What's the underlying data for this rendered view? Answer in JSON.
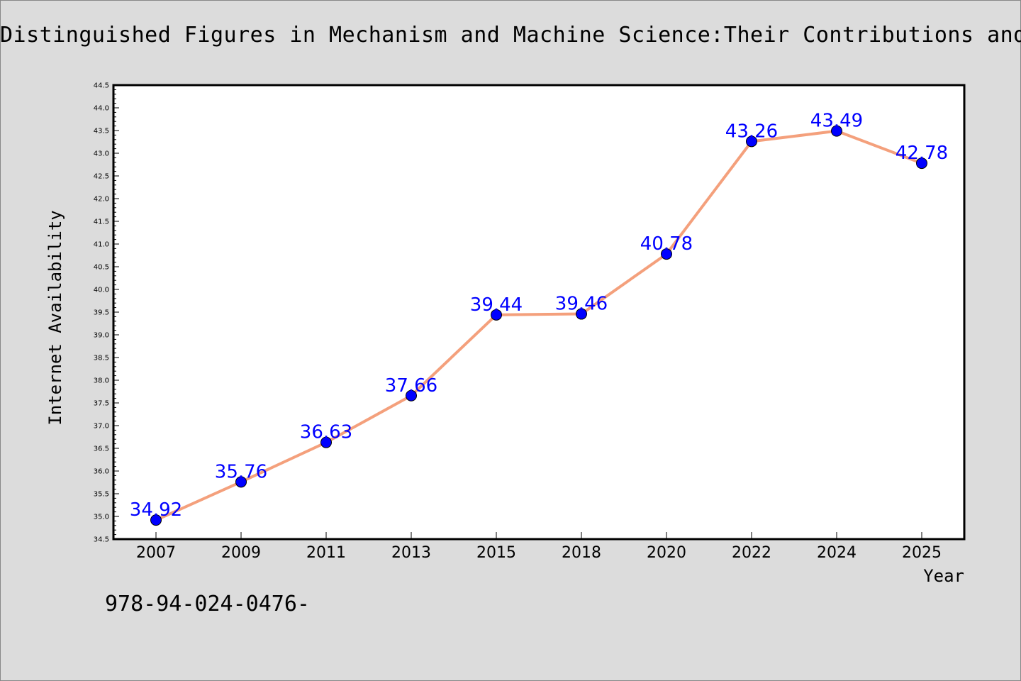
{
  "title": "Distinguished Figures in Mechanism and Machine Science:Their Contributions and Legacies",
  "footer_text": "978-94-024-0476-",
  "colors": {
    "background": "#dcdcdc",
    "plot_background": "#ffffff",
    "line": "#f4a07c",
    "marker": "#0000ff",
    "label": "#0000ff"
  },
  "chart_data": {
    "type": "line",
    "xlabel": "Year",
    "ylabel": "Internet Availability",
    "categories": [
      "2007",
      "2009",
      "2011",
      "2013",
      "2015",
      "2018",
      "2020",
      "2022",
      "2024",
      "2025"
    ],
    "series": [
      {
        "values": [
          34.92,
          35.76,
          36.63,
          37.66,
          39.44,
          39.46,
          40.78,
          43.26,
          43.49,
          42.78
        ]
      }
    ],
    "data_labels": [
      "34.92",
      "35.76",
      "36.63",
      "37.66",
      "39.44",
      "39.46",
      "40.78",
      "43.26",
      "43.49",
      "42.78"
    ],
    "ylim": [
      34.5,
      44.5
    ],
    "yticks": [
      "34.5",
      "35.0",
      "35.5",
      "36.0",
      "36.5",
      "37.0",
      "37.5",
      "38.0",
      "38.5",
      "39.0",
      "39.5",
      "40.0",
      "40.5",
      "41.0",
      "41.5",
      "42.0",
      "42.5",
      "43.0",
      "43.5",
      "44.0",
      "44.5"
    ],
    "grid": false,
    "legend": "none"
  }
}
